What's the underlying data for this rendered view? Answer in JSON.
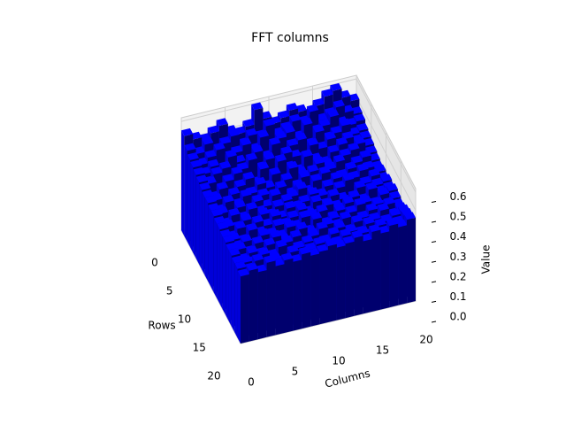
{
  "chart_data": {
    "type": "bar3d",
    "title": "FFT columns",
    "xlabel": "Columns",
    "ylabel": "Rows",
    "zlabel": "Value",
    "xlim": [
      0,
      20
    ],
    "ylim": [
      0,
      20
    ],
    "zlim": [
      0,
      0.62
    ],
    "xticks": [
      0,
      5,
      10,
      15,
      20
    ],
    "yticks": [
      0,
      5,
      10,
      15,
      20
    ],
    "zticks": [
      {
        "value": 0,
        "label": "0.0"
      },
      0.1,
      0.2,
      0.3,
      0.4,
      0.5,
      0.6
    ],
    "color": "#0000ff",
    "grid": true,
    "values": [
      [
        0.55,
        0.52,
        0.5,
        0.53,
        0.56,
        0.51,
        0.49,
        0.52,
        0.6,
        0.54,
        0.5,
        0.52,
        0.55,
        0.53,
        0.5,
        0.54,
        0.58,
        0.6,
        0.55,
        0.52
      ],
      [
        0.5,
        0.47,
        0.51,
        0.45,
        0.49,
        0.52,
        0.46,
        0.5,
        0.48,
        0.53,
        0.47,
        0.49,
        0.52,
        0.5,
        0.55,
        0.49,
        0.51,
        0.54,
        0.5,
        0.48
      ],
      [
        0.48,
        0.44,
        0.47,
        0.5,
        0.43,
        0.46,
        0.49,
        0.45,
        0.51,
        0.44,
        0.48,
        0.5,
        0.46,
        0.52,
        0.47,
        0.49,
        0.53,
        0.48,
        0.46,
        0.47
      ],
      [
        0.47,
        0.42,
        0.45,
        0.41,
        0.48,
        0.44,
        0.4,
        0.47,
        0.43,
        0.49,
        0.42,
        0.46,
        0.48,
        0.44,
        0.5,
        0.45,
        0.47,
        0.5,
        0.44,
        0.45
      ],
      [
        0.46,
        0.4,
        0.44,
        0.46,
        0.39,
        0.43,
        0.47,
        0.41,
        0.45,
        0.4,
        0.46,
        0.43,
        0.41,
        0.47,
        0.44,
        0.48,
        0.42,
        0.46,
        0.43,
        0.44
      ],
      [
        0.45,
        0.43,
        0.38,
        0.42,
        0.45,
        0.4,
        0.37,
        0.44,
        0.39,
        0.46,
        0.41,
        0.38,
        0.45,
        0.42,
        0.39,
        0.44,
        0.47,
        0.41,
        0.45,
        0.43
      ],
      [
        0.44,
        0.38,
        0.42,
        0.36,
        0.41,
        0.44,
        0.39,
        0.37,
        0.43,
        0.38,
        0.44,
        0.4,
        0.37,
        0.43,
        0.41,
        0.38,
        0.44,
        0.46,
        0.4,
        0.42
      ],
      [
        0.43,
        0.4,
        0.36,
        0.41,
        0.37,
        0.39,
        0.43,
        0.4,
        0.36,
        0.42,
        0.37,
        0.41,
        0.43,
        0.38,
        0.42,
        0.45,
        0.39,
        0.42,
        0.44,
        0.41
      ],
      [
        0.43,
        0.37,
        0.41,
        0.38,
        0.42,
        0.36,
        0.4,
        0.38,
        0.42,
        0.37,
        0.4,
        0.36,
        0.41,
        0.44,
        0.37,
        0.4,
        0.43,
        0.38,
        0.41,
        0.4
      ],
      [
        0.42,
        0.39,
        0.35,
        0.4,
        0.36,
        0.41,
        0.37,
        0.42,
        0.35,
        0.39,
        0.42,
        0.38,
        0.36,
        0.4,
        0.43,
        0.38,
        0.41,
        0.44,
        0.39,
        0.41
      ],
      [
        0.42,
        0.36,
        0.4,
        0.37,
        0.41,
        0.38,
        0.35,
        0.39,
        0.41,
        0.36,
        0.38,
        0.41,
        0.39,
        0.37,
        0.41,
        0.44,
        0.37,
        0.4,
        0.43,
        0.4
      ],
      [
        0.41,
        0.38,
        0.36,
        0.39,
        0.35,
        0.4,
        0.38,
        0.36,
        0.4,
        0.39,
        0.35,
        0.4,
        0.37,
        0.41,
        0.38,
        0.36,
        0.42,
        0.39,
        0.41,
        0.42
      ],
      [
        0.41,
        0.35,
        0.39,
        0.36,
        0.4,
        0.37,
        0.41,
        0.35,
        0.38,
        0.41,
        0.37,
        0.36,
        0.4,
        0.38,
        0.36,
        0.41,
        0.38,
        0.43,
        0.4,
        0.41
      ],
      [
        0.4,
        0.37,
        0.35,
        0.4,
        0.37,
        0.35,
        0.39,
        0.38,
        0.36,
        0.4,
        0.38,
        0.41,
        0.36,
        0.39,
        0.42,
        0.37,
        0.4,
        0.38,
        0.42,
        0.43
      ],
      [
        0.4,
        0.36,
        0.38,
        0.35,
        0.39,
        0.38,
        0.36,
        0.4,
        0.37,
        0.35,
        0.41,
        0.37,
        0.39,
        0.36,
        0.4,
        0.43,
        0.37,
        0.41,
        0.39,
        0.42
      ],
      [
        0.39,
        0.38,
        0.35,
        0.39,
        0.36,
        0.4,
        0.37,
        0.35,
        0.41,
        0.38,
        0.36,
        0.4,
        0.38,
        0.41,
        0.37,
        0.39,
        0.42,
        0.4,
        0.43,
        0.41
      ],
      [
        0.39,
        0.35,
        0.38,
        0.36,
        0.4,
        0.35,
        0.39,
        0.41,
        0.36,
        0.39,
        0.42,
        0.36,
        0.4,
        0.37,
        0.41,
        0.38,
        0.4,
        0.44,
        0.4,
        0.42
      ],
      [
        0.38,
        0.37,
        0.36,
        0.39,
        0.37,
        0.41,
        0.36,
        0.38,
        0.4,
        0.37,
        0.38,
        0.41,
        0.37,
        0.4,
        0.38,
        0.42,
        0.39,
        0.41,
        0.43,
        0.44
      ],
      [
        0.38,
        0.36,
        0.4,
        0.37,
        0.38,
        0.36,
        0.4,
        0.37,
        0.39,
        0.41,
        0.36,
        0.39,
        0.42,
        0.38,
        0.41,
        0.39,
        0.43,
        0.4,
        0.42,
        0.45
      ],
      [
        0.37,
        0.39,
        0.37,
        0.41,
        0.38,
        0.4,
        0.38,
        0.41,
        0.39,
        0.4,
        0.42,
        0.4,
        0.41,
        0.43,
        0.4,
        0.44,
        0.42,
        0.45,
        0.43,
        0.46
      ]
    ]
  }
}
